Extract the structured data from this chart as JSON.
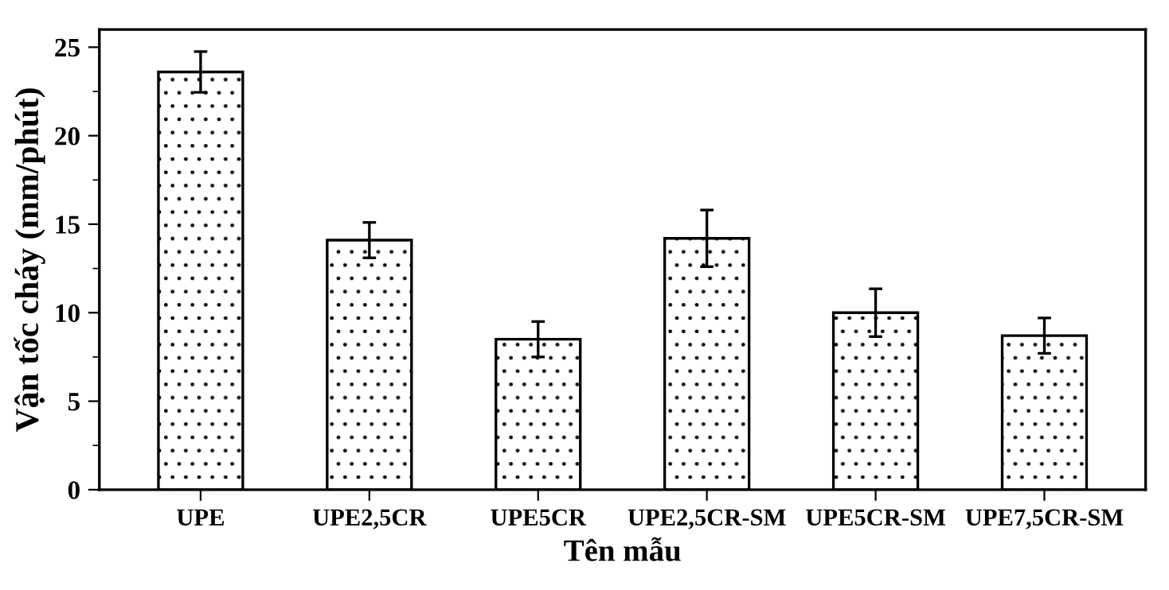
{
  "chart_data": {
    "type": "bar",
    "xlabel": "Tên mẫu",
    "ylabel": "Vận tốc cháy (mm/phút)",
    "categories": [
      "UPE",
      "UPE2,5CR",
      "UPE5CR",
      "UPE2,5CR-SM",
      "UPE5CR-SM",
      "UPE7,5CR-SM"
    ],
    "series": [
      {
        "color": "#000000",
        "values": [
          23.6,
          14.1,
          8.5,
          14.2,
          10.0,
          8.7
        ],
        "errors": [
          1.15,
          1.0,
          1.0,
          1.6,
          1.35,
          1.0
        ]
      }
    ],
    "ylim": [
      0,
      26
    ],
    "yticks": [
      0,
      5,
      10,
      15,
      20,
      25
    ],
    "grid": false,
    "legend": false
  }
}
